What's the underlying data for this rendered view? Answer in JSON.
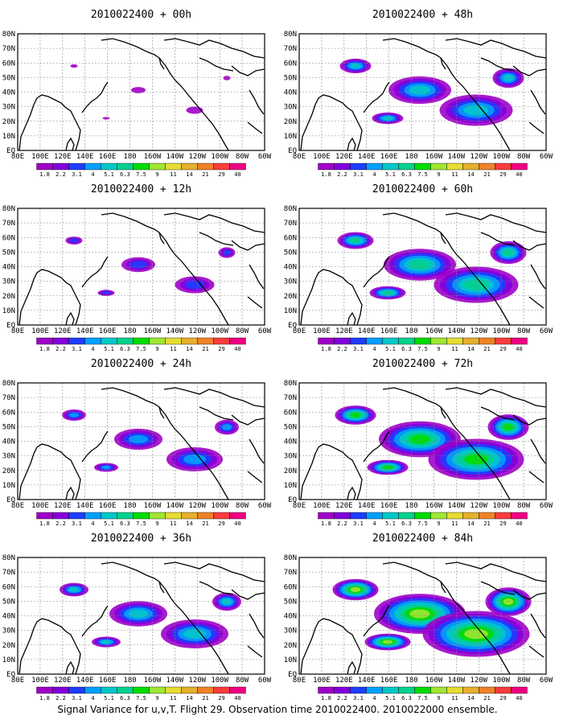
{
  "figure": {
    "caption": "Signal Variance for u,v,T. Flight 29. Observation time 2010022400. 2010022000 ensemble."
  },
  "panels": [
    {
      "title": "2010022400 + 00h",
      "intensity": 0.15
    },
    {
      "title": "2010022400 + 12h",
      "intensity": 0.35
    },
    {
      "title": "2010022400 + 24h",
      "intensity": 0.5
    },
    {
      "title": "2010022400 + 36h",
      "intensity": 0.6
    },
    {
      "title": "2010022400 + 48h",
      "intensity": 0.65
    },
    {
      "title": "2010022400 + 60h",
      "intensity": 0.75
    },
    {
      "title": "2010022400 + 72h",
      "intensity": 0.85
    },
    {
      "title": "2010022400 + 84h",
      "intensity": 0.95
    }
  ],
  "map": {
    "lon_labels": [
      "80E",
      "100E",
      "120E",
      "140E",
      "160E",
      "180",
      "160W",
      "140W",
      "120W",
      "100W",
      "80W",
      "60W"
    ],
    "lat_labels": [
      "EQ",
      "10N",
      "20N",
      "30N",
      "40N",
      "50N",
      "60N",
      "70N",
      "80N"
    ]
  },
  "colorbar": {
    "labels": [
      "1.8",
      "2.2",
      "3.1",
      "4",
      "5.1",
      "6.3",
      "7.5",
      "9",
      "11",
      "14",
      "21",
      "29",
      "40"
    ],
    "colors": [
      "#a000c8",
      "#8200dc",
      "#1e3cff",
      "#00a0ff",
      "#00c8c8",
      "#00d28c",
      "#00dc00",
      "#a0e632",
      "#e6dc32",
      "#e6af2d",
      "#f08228",
      "#fa3c3c",
      "#f00082"
    ]
  }
}
